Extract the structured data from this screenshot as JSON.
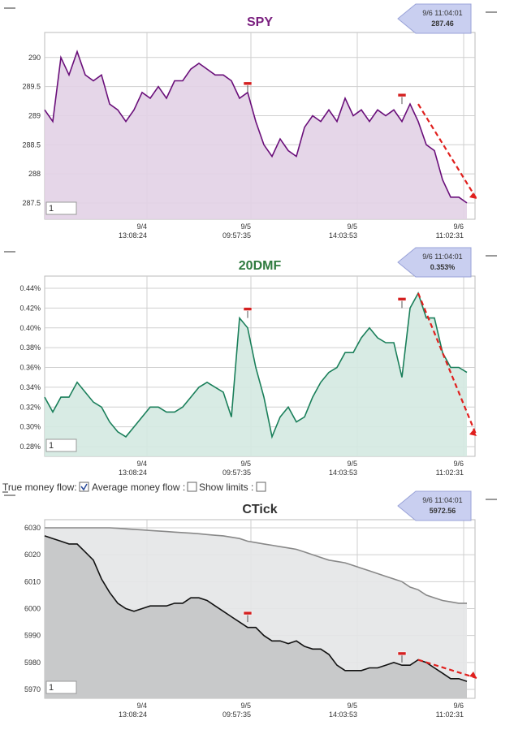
{
  "chart_data": [
    {
      "type": "area",
      "title": "SPY",
      "title_color": "#7a1f7f",
      "callout": {
        "time": "9/6 11:04:01",
        "value": "287.46"
      },
      "input_value": "1",
      "xlim": [
        0,
        53
      ],
      "xticks": [
        {
          "value": 12.6,
          "label": "9/4 13:08:24"
        },
        {
          "value": 25.4,
          "label": "9/5 09:57:35"
        },
        {
          "value": 38.5,
          "label": "9/5 14:03:53"
        },
        {
          "value": 51.6,
          "label": "9/6 11:02:31"
        }
      ],
      "ylim": [
        287.22,
        290.43
      ],
      "yticks": [
        {
          "value": 287.5,
          "label": "287.5"
        },
        288,
        {
          "value": 288.5,
          "label": "288.5"
        },
        289,
        {
          "value": 289.5,
          "label": "289.5"
        },
        290
      ],
      "grid": true,
      "series": [
        {
          "color": "#6a0f7a",
          "fill": "#e2d2e6",
          "values": [
            289.1,
            288.9,
            290.0,
            289.7,
            290.1,
            289.7,
            289.6,
            289.7,
            289.2,
            289.1,
            288.9,
            289.1,
            289.4,
            289.3,
            289.5,
            289.3,
            289.6,
            289.6,
            289.8,
            289.9,
            289.8,
            289.7,
            289.7,
            289.6,
            289.3,
            289.4,
            288.9,
            288.5,
            288.3,
            288.6,
            288.4,
            288.3,
            288.8,
            289.0,
            288.9,
            289.1,
            288.9,
            289.3,
            289.0,
            289.1,
            288.9,
            289.1,
            289.0,
            289.1,
            288.9,
            289.2,
            288.9,
            288.5,
            288.4,
            287.9,
            287.6,
            287.6,
            287.5
          ]
        }
      ]
    },
    {
      "type": "area",
      "title": "20DMF",
      "title_color": "#2e7a3e",
      "callout": {
        "time": "9/6 11:04:01",
        "value": "0.353%"
      },
      "input_value": "1",
      "xlim": [
        0,
        53
      ],
      "xticks": [
        {
          "value": 12.6,
          "label": "9/4 13:08:24"
        },
        {
          "value": 25.4,
          "label": "9/5 09:57:35"
        },
        {
          "value": 38.5,
          "label": "9/5 14:03:53"
        },
        {
          "value": 51.6,
          "label": "9/6 11:02:31"
        }
      ],
      "ylim": [
        0.2702,
        0.4523
      ],
      "yticks": [
        {
          "value": 0.28,
          "label": "0.28%"
        },
        {
          "value": 0.3,
          "label": "0.30%"
        },
        {
          "value": 0.32,
          "label": "0.32%"
        },
        {
          "value": 0.34,
          "label": "0.34%"
        },
        {
          "value": 0.36,
          "label": "0.36%"
        },
        {
          "value": 0.38,
          "label": "0.38%"
        },
        {
          "value": 0.4,
          "label": "0.40%"
        },
        {
          "value": 0.42,
          "label": "0.42%"
        },
        {
          "value": 0.44,
          "label": "0.44%"
        }
      ],
      "grid": true,
      "series": [
        {
          "color": "#1a7f5a",
          "fill": "#d4e9e1",
          "values": [
            0.33,
            0.315,
            0.33,
            0.33,
            0.345,
            0.335,
            0.325,
            0.32,
            0.305,
            0.295,
            0.29,
            0.3,
            0.31,
            0.32,
            0.32,
            0.315,
            0.315,
            0.32,
            0.33,
            0.34,
            0.345,
            0.34,
            0.335,
            0.31,
            0.41,
            0.4,
            0.36,
            0.33,
            0.29,
            0.31,
            0.32,
            0.305,
            0.31,
            0.33,
            0.345,
            0.355,
            0.36,
            0.375,
            0.375,
            0.39,
            0.4,
            0.39,
            0.385,
            0.385,
            0.35,
            0.42,
            0.435,
            0.41,
            0.41,
            0.375,
            0.36,
            0.36,
            0.355
          ]
        }
      ]
    },
    {
      "type": "area",
      "title": "CTick",
      "title_color": "#333333",
      "callout": {
        "time": "9/6 11:04:01",
        "value": "5972.56"
      },
      "input_value": "1",
      "xlim": [
        0,
        53
      ],
      "xticks": [
        {
          "value": 12.6,
          "label": "9/4 13:08:24"
        },
        {
          "value": 25.4,
          "label": "9/5 09:57:35"
        },
        {
          "value": 38.5,
          "label": "9/5 14:03:53"
        },
        {
          "value": 51.6,
          "label": "9/6 11:02:31"
        }
      ],
      "ylim": [
        5966.7,
        6033
      ],
      "yticks": [
        5970,
        5980,
        5990,
        6000,
        6010,
        6020,
        6030
      ],
      "grid": true,
      "series": [
        {
          "color": "#888888",
          "fill": "#e4e5e7",
          "values": [
            6030,
            6030,
            6030,
            6030,
            6030,
            6030,
            6030,
            6030,
            6030,
            6029.8,
            6029.6,
            6029.4,
            6029.2,
            6029,
            6028.8,
            6028.6,
            6028.4,
            6028.2,
            6028,
            6027.8,
            6027.5,
            6027.2,
            6027,
            6026.5,
            6026,
            6025,
            6024.5,
            6024,
            6023.5,
            6023,
            6022.5,
            6022,
            6021,
            6020,
            6019,
            6018,
            6017.5,
            6017,
            6016,
            6015,
            6014,
            6013,
            6012,
            6011,
            6010,
            6008,
            6007,
            6005,
            6004,
            6003,
            6002.5,
            6002,
            6002
          ]
        },
        {
          "color": "#111111",
          "fill": "#c4c5c7",
          "values": [
            6027,
            6026,
            6025,
            6024,
            6024,
            6021,
            6018,
            6011,
            6006,
            6002,
            6000,
            5999,
            6000,
            6001,
            6001,
            6001,
            6002,
            6002,
            6004,
            6004,
            6003,
            6001,
            5999,
            5997,
            5995,
            5993,
            5993,
            5990,
            5988,
            5988,
            5987,
            5988,
            5986,
            5985,
            5985,
            5983,
            5979,
            5977,
            5977,
            5977,
            5978,
            5978,
            5979,
            5980,
            5979,
            5979,
            5981,
            5980,
            5978,
            5976,
            5974,
            5974,
            5973
          ]
        }
      ]
    }
  ],
  "controls": {
    "true_money_flow": "True money flow:",
    "average_money_flow": "Average money flow :",
    "show_limits": "Show limits :"
  }
}
